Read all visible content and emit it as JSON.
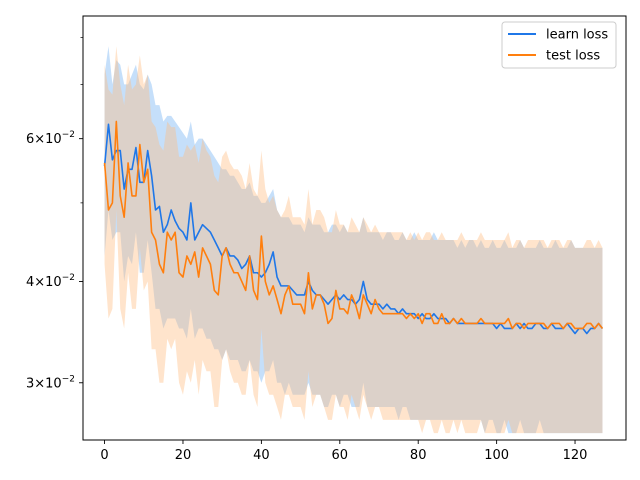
{
  "chart_data": {
    "type": "line",
    "y_scale": "log",
    "xlim": [
      -5.5,
      133
    ],
    "ylim": [
      0.0255,
      0.085
    ],
    "xticks": [
      0,
      20,
      40,
      60,
      80,
      100,
      120
    ],
    "xtick_labels": [
      "0",
      "20",
      "40",
      "60",
      "80",
      "100",
      "120"
    ],
    "yticks_major": [
      0.03,
      0.04,
      0.06
    ],
    "yticks_minor": [
      0.05,
      0.07,
      0.08
    ],
    "legend_position": "top-right",
    "series": [
      {
        "name": "learn loss",
        "color": "#1f77e8",
        "band_color": "#7fb8f5",
        "x_start": 0,
        "x_step": 1,
        "values": [
          0.0555,
          0.0625,
          0.0565,
          0.058,
          0.058,
          0.052,
          0.055,
          0.055,
          0.0585,
          0.053,
          0.053,
          0.058,
          0.054,
          0.049,
          0.0495,
          0.046,
          0.047,
          0.049,
          0.0475,
          0.0465,
          0.046,
          0.045,
          0.05,
          0.045,
          0.046,
          0.047,
          0.0465,
          0.046,
          0.045,
          0.044,
          0.043,
          0.044,
          0.043,
          0.043,
          0.0425,
          0.0415,
          0.042,
          0.043,
          0.041,
          0.041,
          0.0405,
          0.041,
          0.042,
          0.0435,
          0.0405,
          0.0395,
          0.0395,
          0.0395,
          0.039,
          0.0385,
          0.0385,
          0.0385,
          0.04,
          0.039,
          0.0385,
          0.0385,
          0.038,
          0.0375,
          0.038,
          0.0385,
          0.038,
          0.0385,
          0.038,
          0.038,
          0.0375,
          0.038,
          0.04,
          0.038,
          0.0375,
          0.0375,
          0.0375,
          0.037,
          0.0375,
          0.037,
          0.037,
          0.0365,
          0.037,
          0.0365,
          0.0365,
          0.0365,
          0.036,
          0.0365,
          0.036,
          0.036,
          0.0365,
          0.036,
          0.036,
          0.036,
          0.0355,
          0.036,
          0.0355,
          0.0355,
          0.0355,
          0.0355,
          0.0355,
          0.0355,
          0.0355,
          0.0355,
          0.0355,
          0.0355,
          0.035,
          0.0355,
          0.035,
          0.035,
          0.035,
          0.0355,
          0.035,
          0.0355,
          0.035,
          0.035,
          0.0355,
          0.0355,
          0.035,
          0.035,
          0.0355,
          0.035,
          0.035,
          0.035,
          0.0355,
          0.035,
          0.0345,
          0.035,
          0.035,
          0.0345,
          0.035,
          0.035,
          0.0355,
          0.035
        ],
        "upper": [
          0.072,
          0.078,
          0.07,
          0.075,
          0.074,
          0.07,
          0.07,
          0.072,
          0.074,
          0.07,
          0.069,
          0.072,
          0.07,
          0.066,
          0.066,
          0.063,
          0.064,
          0.064,
          0.063,
          0.062,
          0.061,
          0.06,
          0.063,
          0.059,
          0.06,
          0.06,
          0.059,
          0.058,
          0.057,
          0.056,
          0.055,
          0.055,
          0.054,
          0.054,
          0.053,
          0.052,
          0.052,
          0.053,
          0.051,
          0.051,
          0.05,
          0.05,
          0.051,
          0.052,
          0.049,
          0.048,
          0.048,
          0.048,
          0.047,
          0.047,
          0.047,
          0.046,
          0.048,
          0.047,
          0.047,
          0.047,
          0.046,
          0.046,
          0.047,
          0.047,
          0.046,
          0.047,
          0.046,
          0.046,
          0.046,
          0.046,
          0.048,
          0.046,
          0.046,
          0.046,
          0.046,
          0.045,
          0.046,
          0.046,
          0.045,
          0.045,
          0.046,
          0.045,
          0.045,
          0.046,
          0.045,
          0.045,
          0.045,
          0.045,
          0.046,
          0.045,
          0.045,
          0.045,
          0.045,
          0.045,
          0.044,
          0.045,
          0.044,
          0.045,
          0.045,
          0.044,
          0.045,
          0.044,
          0.044,
          0.045,
          0.044,
          0.044,
          0.045,
          0.044,
          0.044,
          0.044,
          0.045,
          0.044,
          0.044,
          0.044,
          0.044,
          0.045,
          0.044,
          0.044,
          0.044,
          0.045,
          0.044,
          0.044,
          0.044,
          0.045,
          0.044,
          0.044,
          0.044,
          0.044,
          0.044,
          0.044,
          0.044,
          0.044
        ],
        "lower": [
          0.043,
          0.049,
          0.045,
          0.046,
          0.046,
          0.04,
          0.043,
          0.042,
          0.046,
          0.041,
          0.041,
          0.045,
          0.041,
          0.037,
          0.037,
          0.035,
          0.036,
          0.036,
          0.036,
          0.035,
          0.035,
          0.034,
          0.037,
          0.034,
          0.035,
          0.035,
          0.034,
          0.034,
          0.033,
          0.033,
          0.032,
          0.033,
          0.032,
          0.032,
          0.032,
          0.031,
          0.031,
          0.032,
          0.031,
          0.031,
          0.03,
          0.031,
          0.031,
          0.032,
          0.03,
          0.03,
          0.029,
          0.03,
          0.029,
          0.029,
          0.029,
          0.029,
          0.03,
          0.029,
          0.029,
          0.029,
          0.028,
          0.028,
          0.029,
          0.029,
          0.028,
          0.029,
          0.029,
          0.028,
          0.028,
          0.028,
          0.03,
          0.028,
          0.028,
          0.028,
          0.028,
          0.028,
          0.028,
          0.028,
          0.028,
          0.027,
          0.028,
          0.028,
          0.027,
          0.027,
          0.027,
          0.027,
          0.027,
          0.027,
          0.027,
          0.027,
          0.027,
          0.027,
          0.027,
          0.027,
          0.027,
          0.027,
          0.027,
          0.027,
          0.027,
          0.027,
          0.027,
          0.026,
          0.027,
          0.027,
          0.026,
          0.026,
          0.027,
          0.026,
          0.026,
          0.026,
          0.027,
          0.026,
          0.026,
          0.026,
          0.026,
          0.027,
          0.026,
          0.026,
          0.026,
          0.026,
          0.026,
          0.026,
          0.026,
          0.026,
          0.026,
          0.026,
          0.026,
          0.026,
          0.026,
          0.026,
          0.026,
          0.026
        ]
      },
      {
        "name": "test loss",
        "color": "#ff7f0e",
        "band_color": "#ffbb80",
        "x_start": 0,
        "x_step": 1,
        "values": [
          0.056,
          0.049,
          0.05,
          0.063,
          0.051,
          0.048,
          0.056,
          0.051,
          0.051,
          0.059,
          0.053,
          0.055,
          0.046,
          0.045,
          0.042,
          0.041,
          0.046,
          0.045,
          0.046,
          0.041,
          0.0405,
          0.043,
          0.042,
          0.0435,
          0.0405,
          0.044,
          0.043,
          0.042,
          0.039,
          0.0385,
          0.043,
          0.044,
          0.042,
          0.041,
          0.041,
          0.04,
          0.039,
          0.043,
          0.039,
          0.038,
          0.0455,
          0.04,
          0.0385,
          0.0395,
          0.038,
          0.0365,
          0.0385,
          0.0395,
          0.0375,
          0.0375,
          0.0375,
          0.0365,
          0.041,
          0.037,
          0.0385,
          0.0385,
          0.0375,
          0.0355,
          0.036,
          0.039,
          0.037,
          0.037,
          0.0365,
          0.0385,
          0.0375,
          0.036,
          0.0385,
          0.0375,
          0.0365,
          0.038,
          0.037,
          0.0365,
          0.0365,
          0.0365,
          0.0365,
          0.0365,
          0.0365,
          0.036,
          0.0365,
          0.036,
          0.0365,
          0.0355,
          0.0365,
          0.0365,
          0.0355,
          0.0355,
          0.0365,
          0.0355,
          0.0355,
          0.036,
          0.0355,
          0.036,
          0.0355,
          0.0355,
          0.0355,
          0.0355,
          0.036,
          0.0355,
          0.0355,
          0.0355,
          0.0355,
          0.0355,
          0.0355,
          0.036,
          0.035,
          0.0355,
          0.0355,
          0.035,
          0.0355,
          0.0355,
          0.0355,
          0.0355,
          0.0355,
          0.035,
          0.0355,
          0.0355,
          0.0355,
          0.035,
          0.0355,
          0.0355,
          0.035,
          0.035,
          0.035,
          0.0355,
          0.0355,
          0.035,
          0.0355,
          0.035
        ],
        "upper": [
          0.074,
          0.069,
          0.068,
          0.078,
          0.07,
          0.066,
          0.074,
          0.069,
          0.07,
          0.076,
          0.07,
          0.072,
          0.063,
          0.062,
          0.059,
          0.058,
          0.063,
          0.062,
          0.062,
          0.057,
          0.057,
          0.059,
          0.058,
          0.059,
          0.056,
          0.06,
          0.058,
          0.057,
          0.054,
          0.053,
          0.057,
          0.058,
          0.056,
          0.055,
          0.055,
          0.054,
          0.052,
          0.056,
          0.052,
          0.051,
          0.058,
          0.052,
          0.05,
          0.051,
          0.049,
          0.048,
          0.049,
          0.051,
          0.048,
          0.048,
          0.048,
          0.047,
          0.052,
          0.047,
          0.049,
          0.049,
          0.048,
          0.046,
          0.046,
          0.049,
          0.047,
          0.047,
          0.046,
          0.048,
          0.047,
          0.046,
          0.048,
          0.047,
          0.046,
          0.047,
          0.046,
          0.046,
          0.046,
          0.046,
          0.046,
          0.046,
          0.046,
          0.045,
          0.046,
          0.045,
          0.046,
          0.045,
          0.046,
          0.046,
          0.045,
          0.045,
          0.046,
          0.045,
          0.045,
          0.045,
          0.045,
          0.046,
          0.045,
          0.045,
          0.045,
          0.045,
          0.046,
          0.045,
          0.045,
          0.045,
          0.045,
          0.045,
          0.045,
          0.046,
          0.044,
          0.045,
          0.045,
          0.044,
          0.045,
          0.045,
          0.045,
          0.045,
          0.045,
          0.044,
          0.045,
          0.045,
          0.045,
          0.044,
          0.045,
          0.045,
          0.044,
          0.044,
          0.044,
          0.045,
          0.045,
          0.044,
          0.045,
          0.044
        ],
        "lower": [
          0.042,
          0.036,
          0.037,
          0.049,
          0.037,
          0.035,
          0.041,
          0.037,
          0.037,
          0.044,
          0.039,
          0.04,
          0.033,
          0.033,
          0.03,
          0.03,
          0.034,
          0.033,
          0.034,
          0.03,
          0.029,
          0.031,
          0.03,
          0.032,
          0.029,
          0.032,
          0.031,
          0.031,
          0.028,
          0.028,
          0.032,
          0.033,
          0.031,
          0.03,
          0.03,
          0.029,
          0.029,
          0.032,
          0.029,
          0.028,
          0.035,
          0.03,
          0.029,
          0.029,
          0.028,
          0.027,
          0.029,
          0.029,
          0.028,
          0.028,
          0.028,
          0.027,
          0.031,
          0.028,
          0.029,
          0.029,
          0.028,
          0.027,
          0.027,
          0.029,
          0.028,
          0.028,
          0.027,
          0.029,
          0.028,
          0.027,
          0.029,
          0.028,
          0.027,
          0.028,
          0.028,
          0.027,
          0.027,
          0.027,
          0.027,
          0.027,
          0.027,
          0.027,
          0.027,
          0.027,
          0.027,
          0.026,
          0.027,
          0.027,
          0.026,
          0.026,
          0.027,
          0.026,
          0.026,
          0.027,
          0.026,
          0.027,
          0.026,
          0.026,
          0.026,
          0.026,
          0.027,
          0.026,
          0.026,
          0.026,
          0.026,
          0.026,
          0.026,
          0.027,
          0.026,
          0.026,
          0.026,
          0.026,
          0.026,
          0.026,
          0.026,
          0.026,
          0.026,
          0.026,
          0.026,
          0.026,
          0.026,
          0.026,
          0.026,
          0.026,
          0.026,
          0.026,
          0.026,
          0.026,
          0.026,
          0.026,
          0.026,
          0.026
        ]
      }
    ]
  }
}
